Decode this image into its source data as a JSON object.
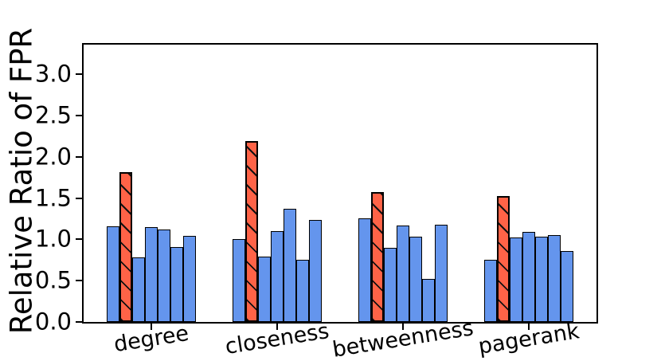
{
  "chart_data": {
    "type": "bar",
    "title": "",
    "xlabel": "",
    "ylabel": "Relative Ratio of FPR",
    "categories": [
      "degree",
      "closeness",
      "betweenness",
      "pagerank"
    ],
    "groups": [
      {
        "category": "degree",
        "values": [
          1.16,
          1.82,
          0.78,
          1.15,
          1.12,
          0.91,
          1.04
        ]
      },
      {
        "category": "closeness",
        "values": [
          1.0,
          2.19,
          0.79,
          1.1,
          1.37,
          0.75,
          1.24
        ]
      },
      {
        "category": "betweenness",
        "values": [
          1.26,
          1.57,
          0.9,
          1.17,
          1.03,
          0.52,
          1.18
        ]
      },
      {
        "category": "pagerank",
        "values": [
          0.75,
          1.53,
          1.02,
          1.09,
          1.03,
          1.05,
          0.86
        ]
      }
    ],
    "bars_per_group": 7,
    "highlight_bar_index": 1,
    "hatch_style": "diagonal-backslash-on-highlight-bar",
    "colors": {
      "bar_normal": "#6495ED",
      "bar_highlight": "#FF6347",
      "bar_edge": "#000000",
      "hatch": "#111111"
    },
    "yticks": [
      0.0,
      0.5,
      1.0,
      1.5,
      2.0,
      2.5,
      3.0
    ],
    "ytick_labels": [
      "0.0",
      "0.5",
      "1.0",
      "1.5",
      "2.0",
      "2.5",
      "3.0"
    ],
    "ylim": [
      0,
      3.36
    ],
    "xlim": [
      -0.54,
      3.54
    ],
    "grid": false,
    "legend": "none"
  }
}
